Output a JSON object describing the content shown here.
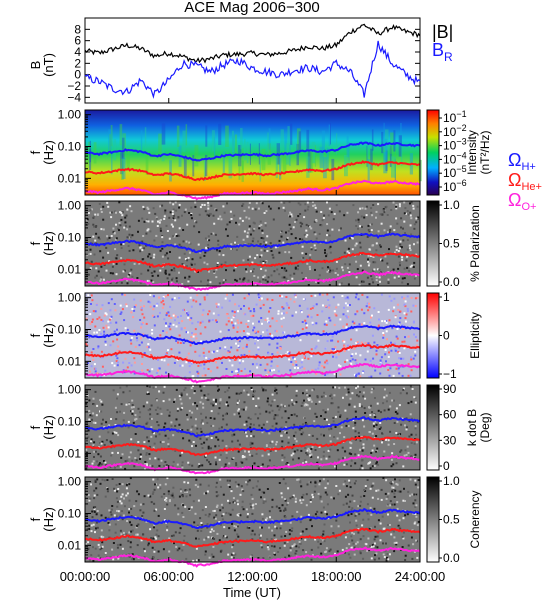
{
  "title": "ACE Mag 2006−300",
  "colors": {
    "bmag": "#000000",
    "br": "#1a1aff",
    "h": "#1a1aff",
    "he": "#ff1a1a",
    "o": "#ff22dd"
  },
  "chart_data": [
    {
      "type": "line",
      "panel": "field",
      "ylabel_top": "B",
      "ylabel_bottom": "(nT)",
      "ylim": [
        -5,
        10
      ],
      "yticks": [
        "−4",
        "−2",
        "0",
        "2",
        "4",
        "6",
        "8"
      ],
      "ytick_values": [
        -4,
        -2,
        0,
        2,
        4,
        6,
        8
      ],
      "legend": [
        {
          "name": "|B|",
          "color": "#000000"
        },
        {
          "name": "B",
          "sub": "R",
          "color": "#1a1aff"
        }
      ],
      "x": [
        0,
        1,
        2,
        3,
        4,
        5,
        6,
        7,
        8,
        9,
        10,
        11,
        12,
        13,
        14,
        15,
        16,
        17,
        18,
        19,
        20,
        21,
        22,
        23,
        24
      ],
      "series": [
        {
          "name": "|B|",
          "values": [
            4.2,
            3.8,
            4.5,
            5.2,
            4.6,
            3.3,
            3.8,
            3.2,
            2.4,
            2.8,
            3.5,
            3.6,
            3.8,
            3.5,
            3.8,
            4.3,
            5.0,
            4.6,
            5.2,
            7.5,
            8.8,
            7.2,
            8.4,
            7.6,
            7.0
          ]
        },
        {
          "name": "B_R",
          "values": [
            -0.5,
            -1.2,
            -2.5,
            -3.0,
            -1.0,
            -3.5,
            -1.0,
            2.0,
            1.5,
            0.5,
            1.8,
            2.5,
            1.2,
            0.5,
            0.0,
            0.8,
            1.2,
            0.5,
            2.0,
            0.5,
            -3.5,
            5.5,
            2.0,
            0.0,
            -1.5
          ]
        }
      ]
    },
    {
      "type": "heatmap",
      "panel": "intensity",
      "ylabel_top": "f",
      "ylabel_bottom": "(Hz)",
      "yticks": [
        "1.00",
        "0.10",
        "0.01"
      ],
      "colorbar": {
        "ticks": [
          [
            "10",
            "−1"
          ],
          [
            "10",
            "−2"
          ],
          [
            "10",
            "−3"
          ],
          [
            "10",
            "−4"
          ],
          [
            "10",
            "−5"
          ],
          [
            "10",
            "−6"
          ]
        ],
        "label_lines": [
          "Intensity",
          "(nT²/Hz)"
        ]
      },
      "legend": [
        {
          "sym": "Ω",
          "sub": "H+",
          "color": "#1a1aff"
        },
        {
          "sym": "Ω",
          "sub": "He+",
          "color": "#ff1a1a"
        },
        {
          "sym": "Ω",
          "sub": "O+",
          "color": "#ff22dd"
        }
      ]
    },
    {
      "type": "heatmap",
      "panel": "polarization",
      "ylabel_top": "f",
      "ylabel_bottom": "(Hz)",
      "yticks": [
        "1.00",
        "0.10",
        "0.01"
      ],
      "colorbar": {
        "ticks": [
          "1.0",
          "0.5",
          "0.0"
        ],
        "label_lines": [
          "% Polarization"
        ]
      }
    },
    {
      "type": "heatmap",
      "panel": "ellipticity",
      "ylabel_top": "f",
      "ylabel_bottom": "(Hz)",
      "yticks": [
        "1.00",
        "0.10",
        "0.01"
      ],
      "colorbar": {
        "ticks": [
          "1",
          "0",
          "−1"
        ],
        "label_lines": [
          "Ellipticity"
        ]
      }
    },
    {
      "type": "heatmap",
      "panel": "kdotb",
      "ylabel_top": "f",
      "ylabel_bottom": "(Hz)",
      "yticks": [
        "1.00",
        "0.10",
        "0.01"
      ],
      "colorbar": {
        "ticks": [
          "90",
          "60",
          "30",
          "0"
        ],
        "label_lines": [
          "k dot B",
          "(Deg)"
        ]
      }
    },
    {
      "type": "heatmap",
      "panel": "coherency",
      "ylabel_top": "f",
      "ylabel_bottom": "(Hz)",
      "yticks": [
        "1.00",
        "0.10",
        "0.01"
      ],
      "colorbar": {
        "ticks": [
          "1.0",
          "0.5",
          "0.0"
        ],
        "label_lines": [
          "Coherency"
        ]
      }
    }
  ],
  "gyrofrequencies": {
    "x": [
      0,
      1,
      2,
      3,
      4,
      5,
      6,
      7,
      8,
      9,
      10,
      11,
      12,
      13,
      14,
      15,
      16,
      17,
      18,
      19,
      20,
      21,
      22,
      23,
      24
    ],
    "H+": [
      0.064,
      0.058,
      0.067,
      0.078,
      0.069,
      0.05,
      0.057,
      0.048,
      0.036,
      0.042,
      0.052,
      0.054,
      0.057,
      0.052,
      0.057,
      0.064,
      0.075,
      0.069,
      0.078,
      0.112,
      0.13,
      0.108,
      0.126,
      0.114,
      0.105
    ],
    "He+": [
      0.016,
      0.0145,
      0.0168,
      0.0195,
      0.0172,
      0.0125,
      0.0142,
      0.012,
      0.009,
      0.0105,
      0.013,
      0.0135,
      0.0142,
      0.013,
      0.0142,
      0.016,
      0.0188,
      0.0172,
      0.0195,
      0.028,
      0.0325,
      0.027,
      0.0315,
      0.0285,
      0.0262
    ],
    "O+": [
      0.004,
      0.0036,
      0.0042,
      0.0049,
      0.0043,
      0.0031,
      0.0036,
      0.003,
      0.0023,
      0.0026,
      0.0033,
      0.0034,
      0.0036,
      0.0033,
      0.0036,
      0.004,
      0.0047,
      0.0043,
      0.0049,
      0.007,
      0.0081,
      0.0068,
      0.0079,
      0.0071,
      0.0066
    ]
  },
  "xaxis": {
    "ticks": [
      "00:00:00",
      "06:00:00",
      "12:00:00",
      "18:00:00",
      "24:00:00"
    ],
    "tick_hours": [
      0,
      6,
      12,
      18,
      24
    ],
    "label": "Time (UT)"
  }
}
